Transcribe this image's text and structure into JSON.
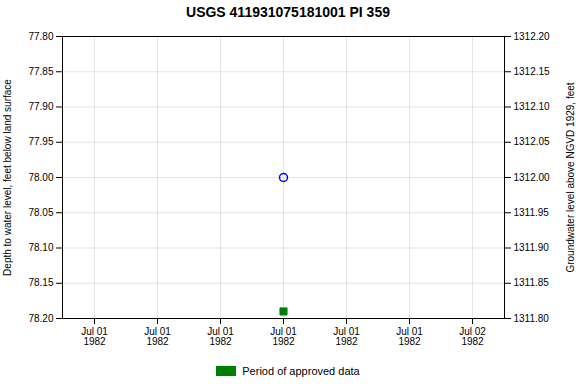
{
  "chart_data": {
    "type": "scatter",
    "title": "USGS 411931075181001 PI   359",
    "categories": [
      "Jul 01\n1982",
      "Jul 01\n1982",
      "Jul 01\n1982",
      "Jul 01\n1982",
      "Jul 01\n1982",
      "Jul 01\n1982",
      "Jul 02\n1982"
    ],
    "series": [
      {
        "color": "#0000ff",
        "marker": "open_circle",
        "values": [
          null,
          null,
          null,
          78.0,
          null,
          null,
          null
        ]
      },
      {
        "name": "Period of approved data",
        "color": "#008000",
        "marker": "square",
        "values": [
          null,
          null,
          null,
          78.19,
          null,
          null,
          null
        ]
      }
    ],
    "ylabel": "Depth to water level, feet below land surface",
    "ylim": [
      78.2,
      77.8
    ],
    "yticks": [
      {
        "value": 77.8,
        "label": "77.80"
      },
      77.85,
      {
        "value": 77.9,
        "label": "77.90"
      },
      77.95,
      {
        "value": 78.0,
        "label": "78.00"
      },
      78.05,
      {
        "value": 78.1,
        "label": "78.10"
      },
      78.15,
      {
        "value": 78.2,
        "label": "78.20"
      }
    ],
    "y2label": "Groundwater level above NGVD 1929, feet",
    "y2lim": [
      1311.8,
      1312.2
    ],
    "y2ticks": [
      {
        "value": 1311.8,
        "label": "1311.80"
      },
      1311.85,
      {
        "value": 1311.9,
        "label": "1311.90"
      },
      1311.95,
      {
        "value": 1312.0,
        "label": "1312.00"
      },
      1312.05,
      {
        "value": 1312.1,
        "label": "1312.10"
      },
      1312.15,
      {
        "value": 1312.2,
        "label": "1312.20"
      }
    ],
    "grid": true,
    "legend": "bottom"
  }
}
